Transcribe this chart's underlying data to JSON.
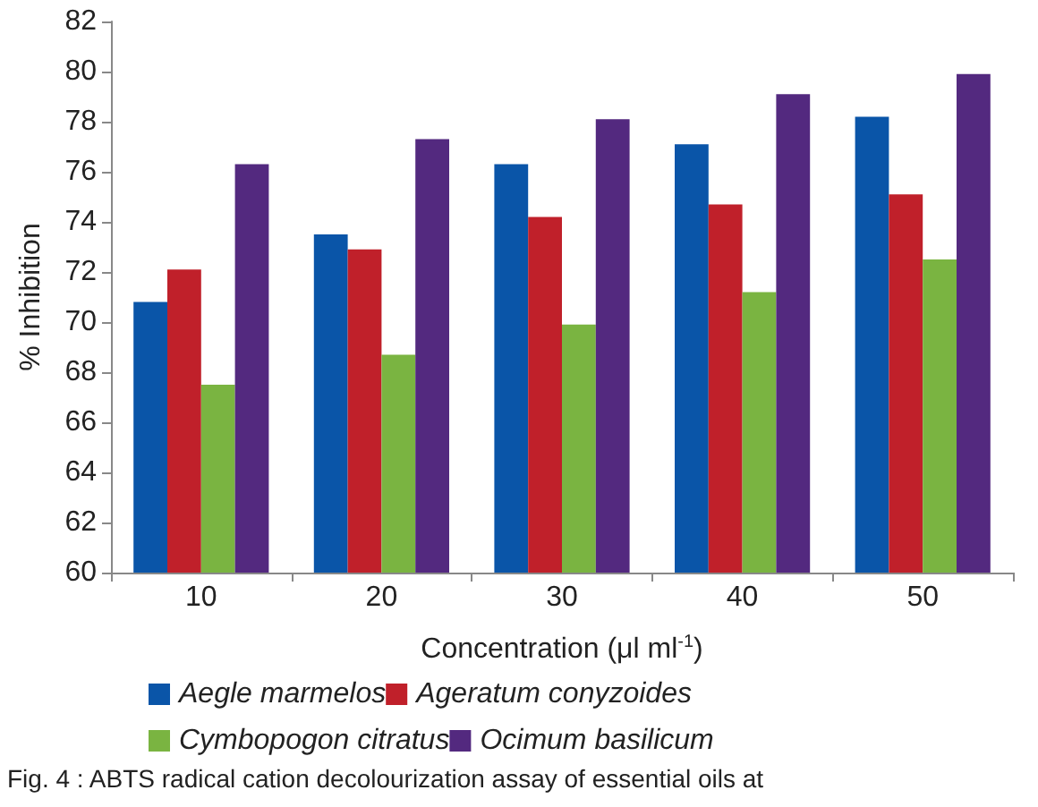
{
  "chart_data": {
    "type": "bar",
    "xlabel": "Concentration (μl ml$^{-1}$)",
    "ylabel": "% Inhibition",
    "categories": [
      "10",
      "20",
      "30",
      "40",
      "50"
    ],
    "series": [
      {
        "name": "Aegle marmelos",
        "color": "#0a55a8",
        "values": [
          70.8,
          73.5,
          76.3,
          77.1,
          78.2
        ]
      },
      {
        "name": "Ageratum conyzoides",
        "color": "#c0202a",
        "values": [
          72.1,
          72.9,
          74.2,
          74.7,
          75.1
        ]
      },
      {
        "name": "Cymbopogon citratus",
        "color": "#7ab441",
        "values": [
          67.5,
          68.7,
          69.9,
          71.2,
          72.5
        ]
      },
      {
        "name": "Ocimum basilicum",
        "color": "#53297f",
        "values": [
          76.3,
          77.3,
          78.1,
          79.1,
          79.9
        ]
      }
    ],
    "ylim": [
      60,
      82
    ],
    "yticks": [
      60,
      62,
      64,
      66,
      68,
      70,
      72,
      74,
      76,
      78,
      80,
      82
    ],
    "grid": false,
    "legend": "bottom",
    "annotations": [
      "Fig. 4 : ABTS radical cation decolourization assay of essential oils at"
    ]
  }
}
